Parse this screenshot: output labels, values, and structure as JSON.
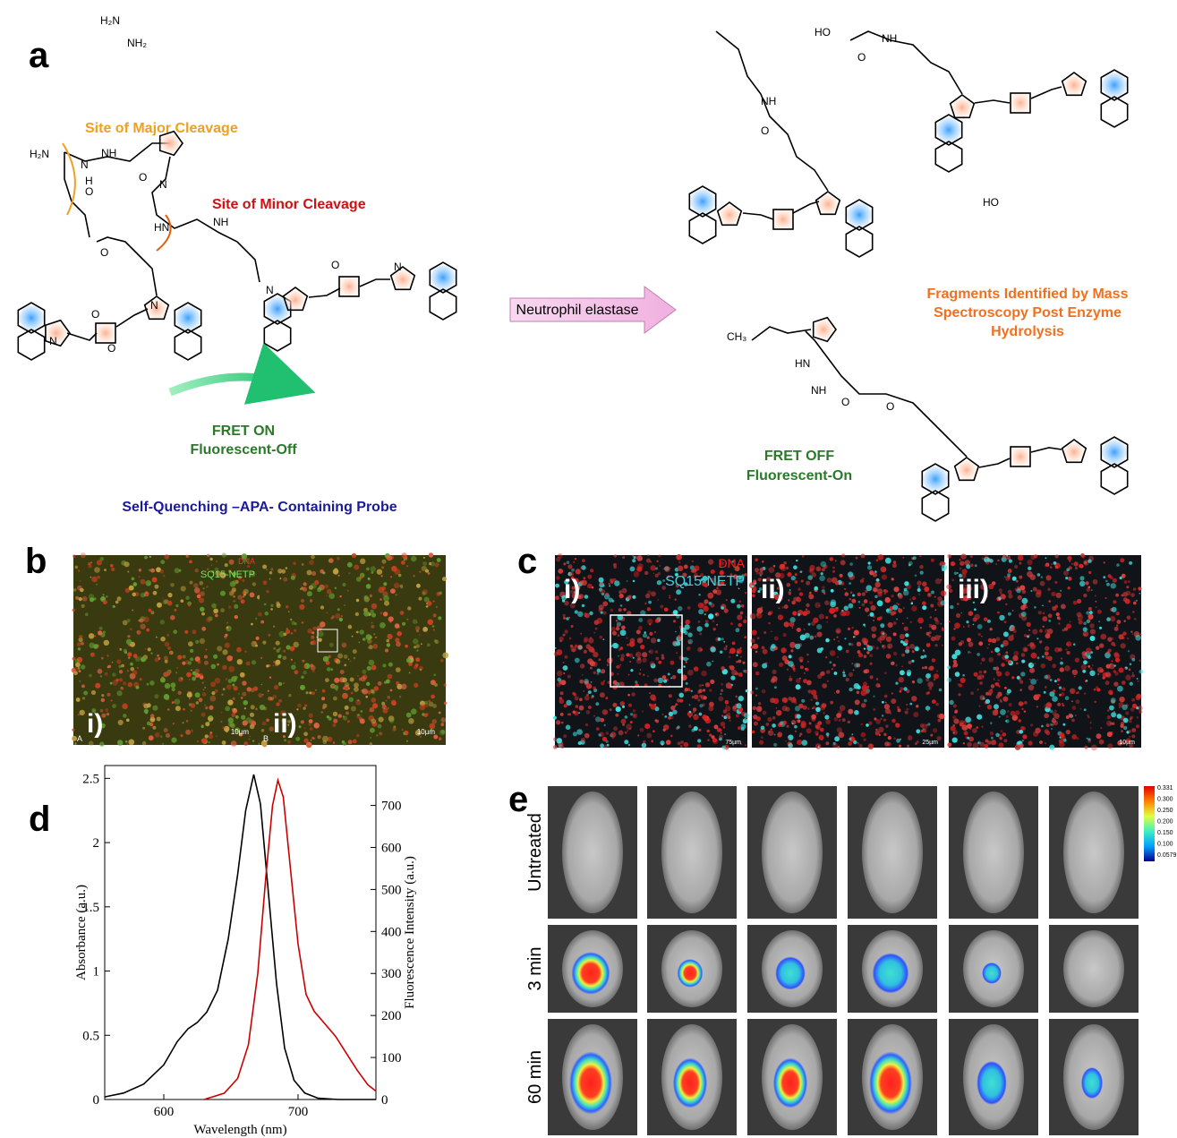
{
  "panel_a": {
    "label": "a",
    "major_cleavage": "Site of Major Cleavage",
    "minor_cleavage": "Site of Minor Cleavage",
    "enzyme": "Neutrophil elastase",
    "fret_on": [
      "FRET ON",
      "Fluorescent-Off"
    ],
    "probe": "Self-Quenching –APA- Containing Probe",
    "fragments": [
      "Fragments Identified by Mass",
      "Spectroscopy Post Enzyme",
      "Hydrolysis"
    ],
    "fret_off": [
      "FRET OFF",
      "Fluorescent-On"
    ],
    "atoms": [
      "H₂N",
      "N",
      "H",
      "NH",
      "O",
      "O",
      "N",
      "HN",
      "NH",
      "O",
      "N",
      "N",
      "O",
      "O",
      "N",
      "O",
      "N",
      "H₂N",
      "NH₂",
      "NH",
      "O",
      "HO",
      "NH",
      "O",
      "HO",
      "CH₃",
      "HN",
      "NH",
      "O",
      "O"
    ]
  },
  "panel_b": {
    "label": "b",
    "legend": [
      "DNA",
      "SQ15-NETP"
    ],
    "images": [
      {
        "label": "i)",
        "corner": "A",
        "scale": "10µm"
      },
      {
        "label": "ii)",
        "corner": "B",
        "scale": "10µm"
      }
    ]
  },
  "panel_c": {
    "label": "c",
    "legend": [
      "DNA",
      "SQ15-NETP"
    ],
    "images": [
      {
        "label": "i)",
        "scale": "75µm"
      },
      {
        "label": "ii)",
        "scale": "25µm"
      },
      {
        "label": "iii)",
        "scale": "10µm"
      }
    ]
  },
  "chart_data": {
    "type": "line",
    "label": "d",
    "x_label": "Wavelength (nm)",
    "y_label": "Absorbance (a.u.)",
    "y2_label": "Fluorescence Intensity (a.u.)",
    "xlim": [
      556,
      758
    ],
    "xticks": [
      600,
      700
    ],
    "ylim": [
      0,
      2.6
    ],
    "yticks": [
      0,
      0.5,
      1,
      1.5,
      2,
      2.5
    ],
    "y2lim": [
      0,
      795
    ],
    "y2ticks": [
      0,
      100,
      200,
      300,
      400,
      500,
      600,
      700
    ],
    "series": [
      {
        "color": "#000000",
        "x": [
          556,
          570,
          585,
          600,
          610,
          618,
          625,
          632,
          640,
          648,
          655,
          661,
          667,
          672,
          678,
          684,
          690,
          697,
          705,
          715,
          730,
          758
        ],
        "values": [
          0.02,
          0.05,
          0.12,
          0.27,
          0.45,
          0.55,
          0.6,
          0.68,
          0.85,
          1.25,
          1.75,
          2.25,
          2.53,
          2.3,
          1.6,
          0.9,
          0.4,
          0.15,
          0.05,
          0.01,
          0,
          0
        ]
      },
      {
        "color": "#cc0000",
        "axis": "y2",
        "x": [
          630,
          645,
          655,
          663,
          670,
          676,
          681,
          685,
          689,
          694,
          700,
          706,
          712,
          720,
          728,
          736,
          744,
          752,
          758
        ],
        "values": [
          0,
          15,
          50,
          130,
          300,
          530,
          700,
          760,
          720,
          560,
          370,
          250,
          210,
          180,
          150,
          110,
          70,
          35,
          20
        ]
      }
    ]
  },
  "panel_e": {
    "label": "e",
    "rows": [
      "Untreated",
      "3 min",
      "60 min"
    ],
    "colorbar_ticks": [
      "0.331",
      "0.300",
      "0.250",
      "0.200",
      "0.150",
      "0.100",
      "0.0579"
    ]
  }
}
